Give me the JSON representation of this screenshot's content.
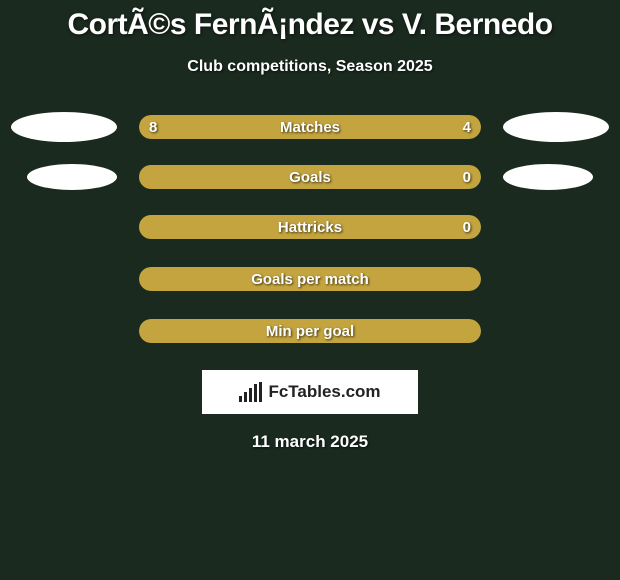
{
  "title": "CortÃ©s FernÃ¡ndez vs V. Bernedo",
  "subtitle": "Club competitions, Season 2025",
  "date": "11 march 2025",
  "logo_text": "FcTables.com",
  "colors": {
    "background": "#1a2a1f",
    "bar_track": "#3c5a2c",
    "bar_fill": "#c3a43e",
    "ellipse": "#ffffff",
    "text": "#ffffff"
  },
  "stats": [
    {
      "label": "Matches",
      "left_value": "8",
      "right_value": "4",
      "left_pct": 66.7,
      "right_pct": 33.3,
      "show_left_ellipse": true,
      "show_right_ellipse": true,
      "full": false
    },
    {
      "label": "Goals",
      "left_value": "",
      "right_value": "0",
      "left_pct": 0,
      "right_pct": 100,
      "show_left_ellipse": true,
      "show_right_ellipse": true,
      "ellipse_small": true,
      "full": false
    },
    {
      "label": "Hattricks",
      "left_value": "",
      "right_value": "0",
      "left_pct": 0,
      "right_pct": 100,
      "show_left_ellipse": false,
      "show_right_ellipse": false,
      "full": false
    },
    {
      "label": "Goals per match",
      "left_value": "",
      "right_value": "",
      "left_pct": 0,
      "right_pct": 0,
      "show_left_ellipse": false,
      "show_right_ellipse": false,
      "full": true
    },
    {
      "label": "Min per goal",
      "left_value": "",
      "right_value": "",
      "left_pct": 0,
      "right_pct": 0,
      "show_left_ellipse": false,
      "show_right_ellipse": false,
      "full": true
    }
  ]
}
